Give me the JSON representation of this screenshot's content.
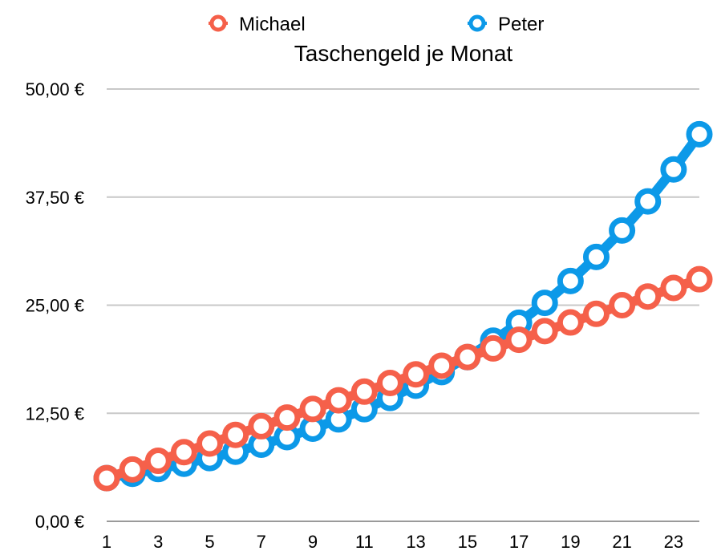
{
  "chart_data": {
    "type": "line",
    "title": "Taschengeld je Monat",
    "xlabel": "",
    "ylabel": "",
    "legend_position": "top",
    "grid": true,
    "x": [
      1,
      2,
      3,
      4,
      5,
      6,
      7,
      8,
      9,
      10,
      11,
      12,
      13,
      14,
      15,
      16,
      17,
      18,
      19,
      20,
      21,
      22,
      23,
      24
    ],
    "x_tick_labels": [
      "1",
      "3",
      "5",
      "7",
      "9",
      "11",
      "13",
      "15",
      "17",
      "19",
      "21",
      "23"
    ],
    "x_tick_values": [
      1,
      3,
      5,
      7,
      9,
      11,
      13,
      15,
      17,
      19,
      21,
      23
    ],
    "xlim": [
      1,
      24
    ],
    "ylim": [
      0,
      50
    ],
    "y_tick_values": [
      0,
      12.5,
      25,
      37.5,
      50
    ],
    "y_tick_labels": [
      "0,00 €",
      "12,50 €",
      "25,00 €",
      "37,50 €",
      "50,00 €"
    ],
    "series": [
      {
        "name": "Michael",
        "color": "#F5604A",
        "values": [
          5,
          6,
          7,
          8,
          9,
          10,
          11,
          12,
          13,
          14,
          15,
          16,
          17,
          18,
          19,
          20,
          21,
          22,
          23,
          24,
          25,
          26,
          27,
          28
        ]
      },
      {
        "name": "Peter",
        "color": "#0C99E8",
        "values": [
          5,
          5.5,
          6.05,
          6.66,
          7.32,
          8.05,
          8.86,
          9.74,
          10.72,
          11.79,
          12.97,
          14.27,
          15.69,
          17.26,
          18.99,
          20.89,
          22.97,
          25.27,
          27.8,
          30.58,
          33.64,
          37,
          40.7,
          44.77
        ]
      }
    ]
  }
}
